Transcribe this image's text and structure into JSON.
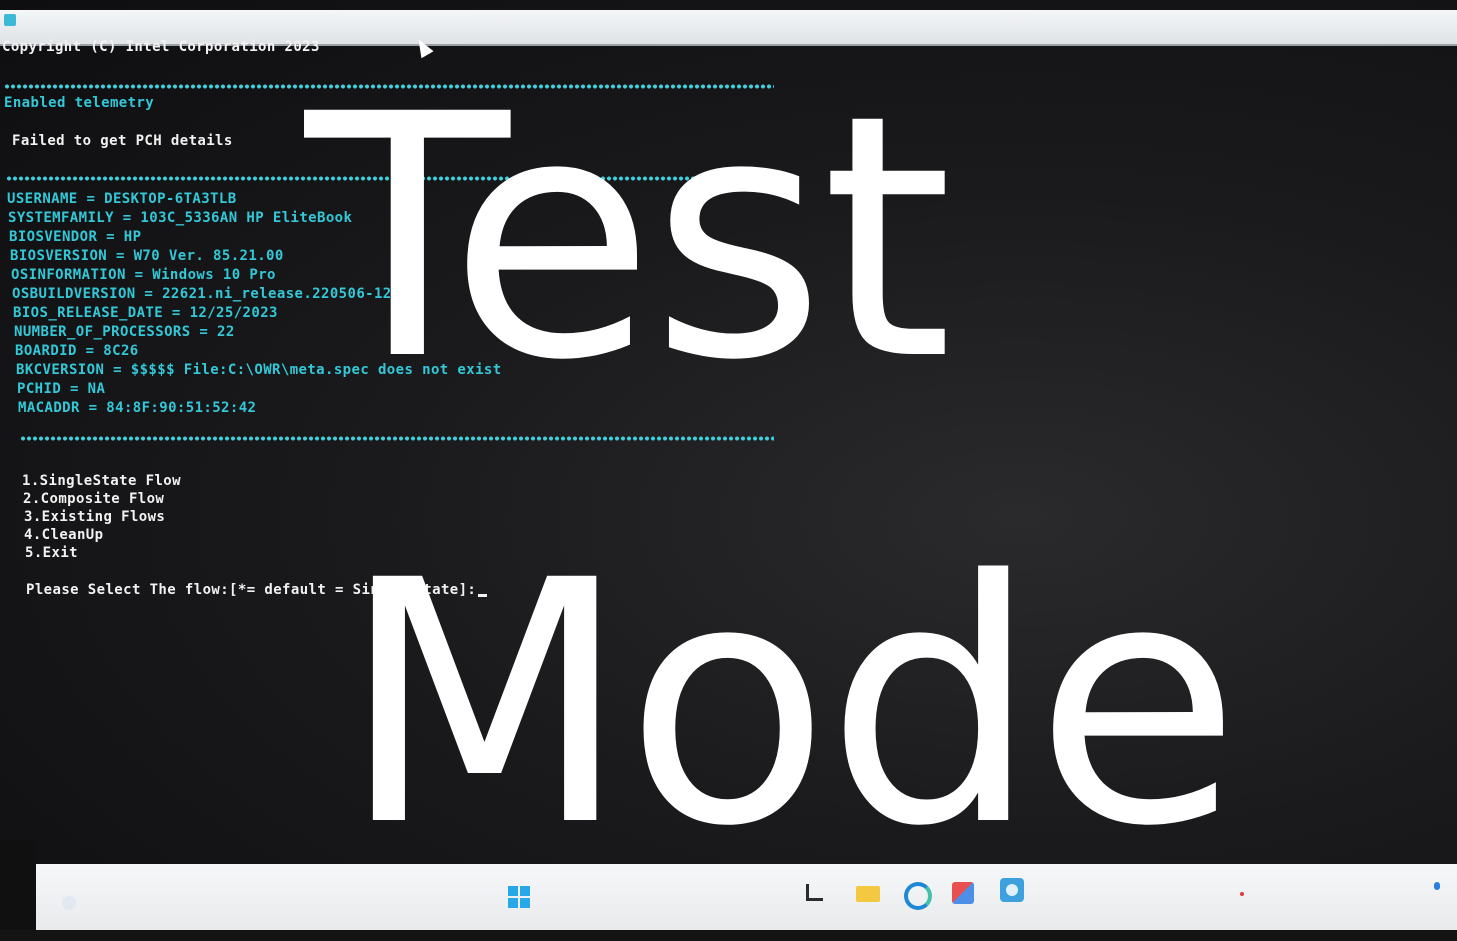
{
  "console": {
    "header": "Copyright (C) Intel Corporation 2023",
    "telemetry": "Enabled telemetry",
    "pch_error": "Failed to get PCH details",
    "system_info": [
      "USERNAME = DESKTOP-6TA3TLB",
      "SYSTEMFAMILY = 103C_5336AN HP EliteBook",
      "BIOSVENDOR = HP",
      "BIOSVERSION = W70 Ver. 85.21.00",
      "OSINFORMATION = Windows 10 Pro",
      "OSBUILDVERSION = 22621.ni_release.220506-1250",
      "BIOS_RELEASE_DATE = 12/25/2023",
      "NUMBER_OF_PROCESSORS = 22",
      "BOARDID = 8C26",
      "BKCVERSION = $$$$$ File:C:\\OWR\\meta.spec does not exist",
      "PCHID = NA",
      "MACADDR = 84:8F:90:51:52:42"
    ],
    "menu": [
      "1.SingleState Flow",
      "2.Composite Flow",
      "3.Existing Flows",
      "4.CleanUp",
      "5.Exit"
    ],
    "prompt": "Please Select The flow:[*= default = Single State]:"
  },
  "watermark": {
    "line1": "Test",
    "line2": "Mode"
  },
  "taskbar": {
    "icons": [
      "start-icon",
      "task-view-icon",
      "file-explorer-icon",
      "edge-icon",
      "store-icon",
      "app-icon"
    ]
  },
  "colors": {
    "console_text": "#f2f2f2",
    "console_cyan": "#33c8d8",
    "background": "#1a1a1c",
    "watermark": "#ffffff"
  }
}
